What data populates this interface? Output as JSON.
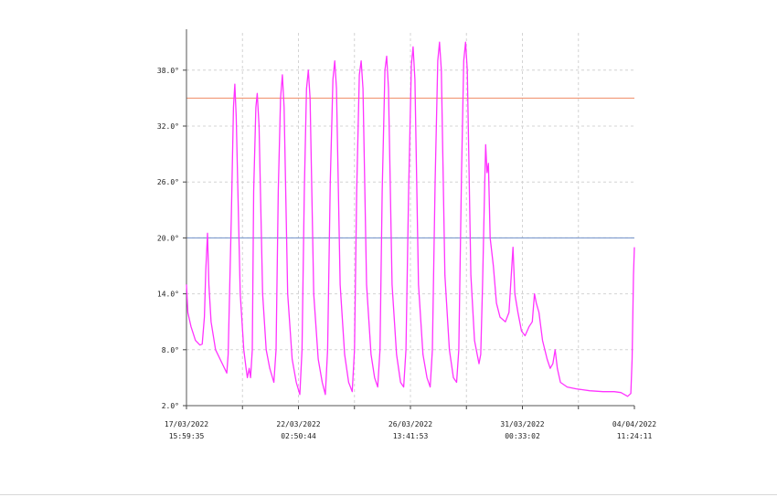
{
  "chart_data": {
    "type": "line",
    "title": "",
    "xlabel": "",
    "ylabel": "",
    "ylim": [
      2.0,
      42.0
    ],
    "y_ticks": [
      {
        "value": 2,
        "label": "2.0°"
      },
      {
        "value": 8,
        "label": "8.0°"
      },
      {
        "value": 14,
        "label": "14.0°"
      },
      {
        "value": 20,
        "label": "20.0°"
      },
      {
        "value": 26,
        "label": "26.0°"
      },
      {
        "value": 32,
        "label": "32.0°"
      },
      {
        "value": 38,
        "label": "38.0°"
      }
    ],
    "x_ticks": [
      {
        "date": "17/03/2022",
        "time": "15:59:35"
      },
      {
        "date": "22/03/2022",
        "time": "02:50:44"
      },
      {
        "date": "26/03/2022",
        "time": "13:41:53"
      },
      {
        "date": "31/03/2022",
        "time": "00:33:02"
      },
      {
        "date": "04/04/2022",
        "time": "11:24:11"
      }
    ],
    "grid": true,
    "thresholds": [
      {
        "value": 35.0,
        "color": "#f08c64"
      },
      {
        "value": 20.0,
        "color": "#6e8ec8"
      }
    ],
    "series": [
      {
        "color": "#ff33ff",
        "points": [
          [
            0.0,
            15.0
          ],
          [
            0.003,
            12.0
          ],
          [
            0.01,
            10.5
          ],
          [
            0.02,
            9.0
          ],
          [
            0.03,
            8.5
          ],
          [
            0.035,
            8.6
          ],
          [
            0.04,
            11.5
          ],
          [
            0.043,
            16.5
          ],
          [
            0.047,
            20.5
          ],
          [
            0.05,
            15.0
          ],
          [
            0.055,
            11.0
          ],
          [
            0.065,
            8.0
          ],
          [
            0.08,
            6.5
          ],
          [
            0.09,
            5.5
          ],
          [
            0.093,
            7.5
          ],
          [
            0.1,
            22.0
          ],
          [
            0.105,
            34.0
          ],
          [
            0.108,
            36.5
          ],
          [
            0.111,
            33.0
          ],
          [
            0.12,
            14.0
          ],
          [
            0.128,
            8.0
          ],
          [
            0.133,
            6.0
          ],
          [
            0.136,
            5.0
          ],
          [
            0.14,
            6.0
          ],
          [
            0.143,
            5.0
          ],
          [
            0.147,
            8.0
          ],
          [
            0.15,
            25.0
          ],
          [
            0.155,
            34.0
          ],
          [
            0.158,
            35.5
          ],
          [
            0.162,
            32.0
          ],
          [
            0.17,
            14.0
          ],
          [
            0.178,
            8.0
          ],
          [
            0.186,
            6.0
          ],
          [
            0.195,
            4.5
          ],
          [
            0.2,
            8.0
          ],
          [
            0.205,
            25.0
          ],
          [
            0.21,
            35.0
          ],
          [
            0.214,
            37.5
          ],
          [
            0.218,
            34.0
          ],
          [
            0.226,
            14.0
          ],
          [
            0.236,
            7.0
          ],
          [
            0.245,
            4.5
          ],
          [
            0.253,
            3.2
          ],
          [
            0.258,
            8.0
          ],
          [
            0.263,
            25.0
          ],
          [
            0.268,
            36.0
          ],
          [
            0.272,
            38.0
          ],
          [
            0.276,
            35.0
          ],
          [
            0.284,
            14.0
          ],
          [
            0.294,
            7.0
          ],
          [
            0.303,
            4.5
          ],
          [
            0.31,
            3.2
          ],
          [
            0.315,
            8.0
          ],
          [
            0.321,
            26.0
          ],
          [
            0.327,
            37.0
          ],
          [
            0.331,
            39.0
          ],
          [
            0.335,
            36.0
          ],
          [
            0.343,
            15.0
          ],
          [
            0.353,
            7.5
          ],
          [
            0.362,
            4.5
          ],
          [
            0.37,
            3.5
          ],
          [
            0.375,
            8.0
          ],
          [
            0.38,
            25.0
          ],
          [
            0.386,
            37.5
          ],
          [
            0.39,
            39.0
          ],
          [
            0.394,
            36.0
          ],
          [
            0.402,
            15.0
          ],
          [
            0.412,
            7.5
          ],
          [
            0.42,
            5.0
          ],
          [
            0.427,
            4.0
          ],
          [
            0.432,
            8.0
          ],
          [
            0.437,
            25.0
          ],
          [
            0.443,
            38.0
          ],
          [
            0.447,
            39.5
          ],
          [
            0.451,
            36.0
          ],
          [
            0.459,
            15.0
          ],
          [
            0.469,
            7.5
          ],
          [
            0.478,
            4.5
          ],
          [
            0.485,
            4.0
          ],
          [
            0.49,
            8.0
          ],
          [
            0.496,
            25.0
          ],
          [
            0.502,
            38.5
          ],
          [
            0.506,
            40.5
          ],
          [
            0.51,
            37.0
          ],
          [
            0.518,
            15.0
          ],
          [
            0.528,
            7.5
          ],
          [
            0.537,
            5.0
          ],
          [
            0.544,
            4.0
          ],
          [
            0.549,
            8.0
          ],
          [
            0.555,
            26.0
          ],
          [
            0.561,
            39.0
          ],
          [
            0.565,
            41.0
          ],
          [
            0.569,
            38.0
          ],
          [
            0.577,
            16.0
          ],
          [
            0.587,
            8.0
          ],
          [
            0.596,
            5.0
          ],
          [
            0.603,
            4.5
          ],
          [
            0.608,
            8.0
          ],
          [
            0.614,
            27.0
          ],
          [
            0.619,
            39.0
          ],
          [
            0.623,
            41.0
          ],
          [
            0.627,
            38.0
          ],
          [
            0.635,
            16.0
          ],
          [
            0.643,
            9.0
          ],
          [
            0.649,
            7.5
          ],
          [
            0.653,
            6.5
          ],
          [
            0.657,
            7.5
          ],
          [
            0.661,
            15.0
          ],
          [
            0.666,
            26.0
          ],
          [
            0.668,
            30.0
          ],
          [
            0.671,
            27.0
          ],
          [
            0.674,
            28.0
          ],
          [
            0.678,
            20.0
          ],
          [
            0.685,
            17.0
          ],
          [
            0.692,
            13.0
          ],
          [
            0.7,
            11.5
          ],
          [
            0.712,
            11.0
          ],
          [
            0.72,
            12.0
          ],
          [
            0.725,
            16.0
          ],
          [
            0.729,
            19.0
          ],
          [
            0.733,
            14.0
          ],
          [
            0.74,
            12.0
          ],
          [
            0.748,
            10.0
          ],
          [
            0.756,
            9.5
          ],
          [
            0.765,
            10.5
          ],
          [
            0.772,
            11.0
          ],
          [
            0.777,
            14.0
          ],
          [
            0.781,
            13.0
          ],
          [
            0.787,
            12.0
          ],
          [
            0.795,
            9.0
          ],
          [
            0.805,
            7.0
          ],
          [
            0.812,
            6.0
          ],
          [
            0.818,
            6.5
          ],
          [
            0.823,
            8.0
          ],
          [
            0.828,
            6.0
          ],
          [
            0.835,
            4.5
          ],
          [
            0.85,
            4.0
          ],
          [
            0.87,
            3.8
          ],
          [
            0.9,
            3.6
          ],
          [
            0.93,
            3.5
          ],
          [
            0.955,
            3.5
          ],
          [
            0.97,
            3.4
          ],
          [
            0.985,
            3.0
          ],
          [
            0.992,
            3.3
          ],
          [
            0.995,
            7.0
          ],
          [
            0.998,
            16.0
          ],
          [
            1.0,
            19.0
          ]
        ]
      }
    ]
  }
}
